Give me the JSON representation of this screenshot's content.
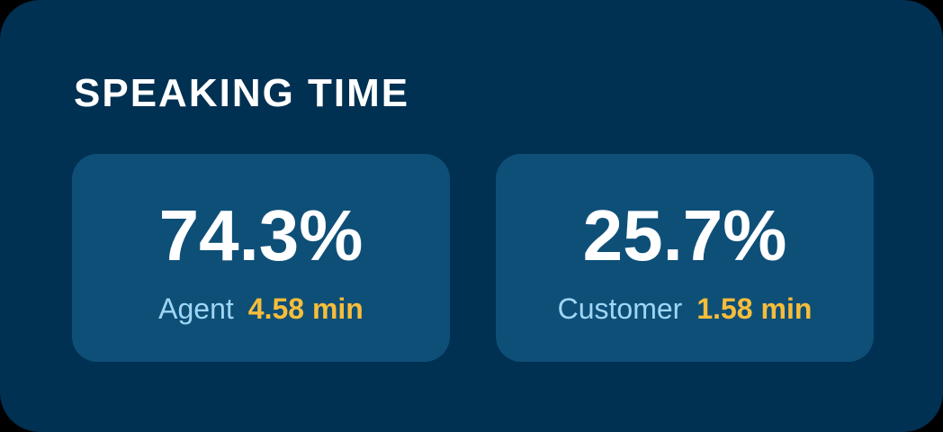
{
  "widget": {
    "title": "SPEAKING TIME"
  },
  "cards": [
    {
      "percent": "74.3%",
      "role": "Agent",
      "duration": "4.58 min"
    },
    {
      "percent": "25.7%",
      "role": "Customer",
      "duration": "1.58 min"
    }
  ],
  "colors": {
    "panel_background": "#003052",
    "card_background": "#0e4f78",
    "title_text": "#ffffff",
    "role_text": "#9fd6f5",
    "duration_text": "#f7bd3a"
  }
}
